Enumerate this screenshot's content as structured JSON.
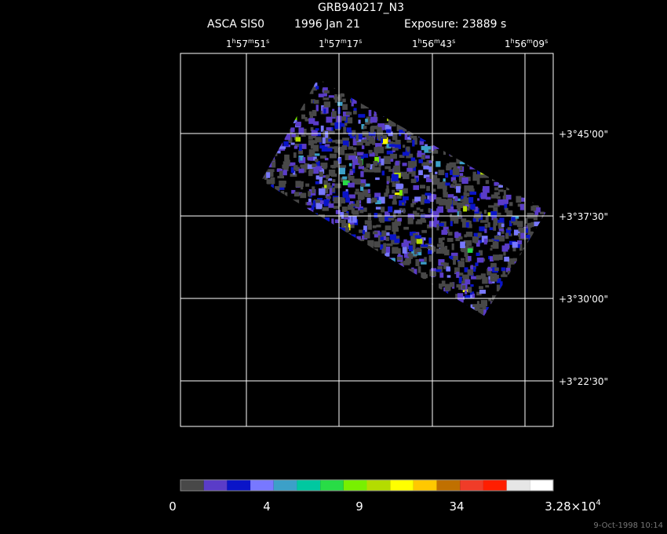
{
  "header": {
    "title": "GRB940217_N3",
    "instrument": "ASCA SIS0",
    "date": "1996 Jan 21",
    "exposure": "Exposure: 23889 s"
  },
  "ra_labels": [
    [
      "1",
      "h",
      "57",
      "m",
      "51",
      "s"
    ],
    [
      "1",
      "h",
      "57",
      "m",
      "17",
      "s"
    ],
    [
      "1",
      "h",
      "56",
      "m",
      "43",
      "s"
    ],
    [
      "1",
      "h",
      "56",
      "m",
      "09",
      "s"
    ]
  ],
  "dec_labels": [
    "+3°45'00\"",
    "+3°37'30\"",
    "+3°30'00\"",
    "+3°22'30\""
  ],
  "colorbar": {
    "colors": [
      "#484848",
      "#5a3cc8",
      "#0a14c8",
      "#7878ff",
      "#3ca0c8",
      "#00c8a0",
      "#28dc46",
      "#78f000",
      "#b4dc00",
      "#ffff00",
      "#ffc800",
      "#c07000",
      "#f03c28",
      "#ff1e00",
      "#e6e6e6",
      "#ffffff"
    ],
    "labels": [
      [
        "0"
      ],
      [
        "4"
      ],
      [
        "9"
      ],
      [
        "34"
      ],
      [
        "3.28×10",
        "4"
      ]
    ]
  },
  "timestamp": "9-Oct-1998 10:14"
}
